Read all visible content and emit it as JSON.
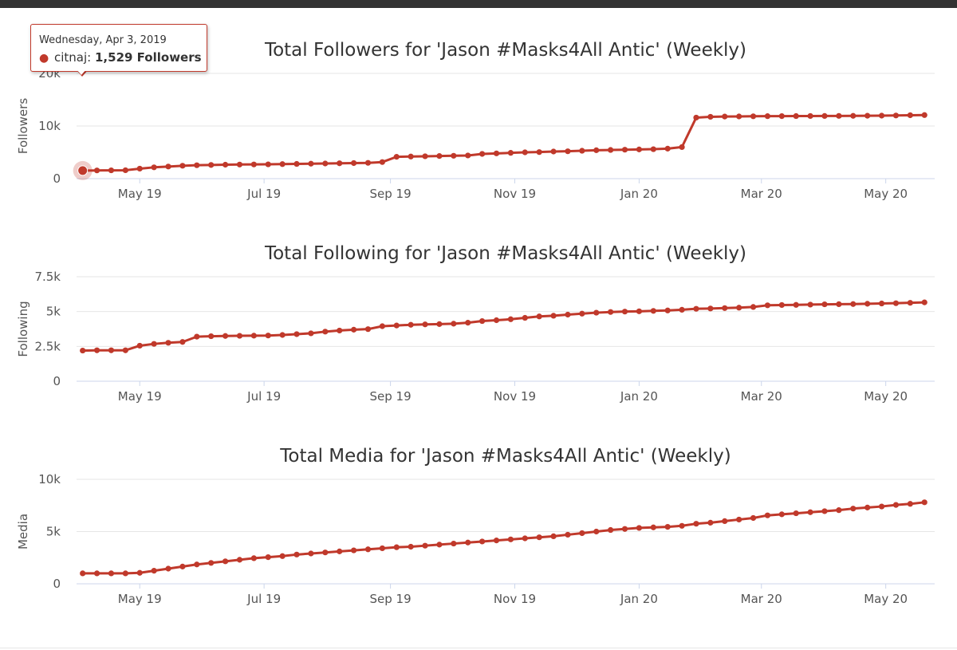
{
  "colors": {
    "series": "#c0392b",
    "grid": "#e6e6e6",
    "axis": "#ccd6eb",
    "text": "#333333"
  },
  "tooltip": {
    "date": "Wednesday, Apr 3, 2019",
    "series": "citnaj",
    "value": "1,529 Followers"
  },
  "chart_data": [
    {
      "type": "line",
      "title": "Total Followers for 'Jason #Masks4All Antic' (Weekly)",
      "xlabel": "",
      "ylabel": "Followers",
      "ylim": [
        0,
        20000
      ],
      "yticks": [
        0,
        10000,
        20000
      ],
      "ytick_labels": [
        "0",
        "10k",
        "20k"
      ],
      "xlim": [
        "2019-03-31",
        "2020-05-25"
      ],
      "xticks": [
        "2019-05-01",
        "2019-07-01",
        "2019-09-01",
        "2019-11-01",
        "2020-01-01",
        "2020-03-01",
        "2020-05-01"
      ],
      "xtick_labels": [
        "May 19",
        "Jul 19",
        "Sep 19",
        "Nov 19",
        "Jan 20",
        "Mar 20",
        "May 20"
      ],
      "grid": true,
      "highlight_index": 0,
      "series": [
        {
          "name": "citnaj",
          "x": [
            "2019-04-03",
            "2019-04-10",
            "2019-04-17",
            "2019-04-24",
            "2019-05-01",
            "2019-05-08",
            "2019-05-15",
            "2019-05-22",
            "2019-05-29",
            "2019-06-05",
            "2019-06-12",
            "2019-06-19",
            "2019-06-26",
            "2019-07-03",
            "2019-07-10",
            "2019-07-17",
            "2019-07-24",
            "2019-07-31",
            "2019-08-07",
            "2019-08-14",
            "2019-08-21",
            "2019-08-28",
            "2019-09-04",
            "2019-09-11",
            "2019-09-18",
            "2019-09-25",
            "2019-10-02",
            "2019-10-09",
            "2019-10-16",
            "2019-10-23",
            "2019-10-30",
            "2019-11-06",
            "2019-11-13",
            "2019-11-20",
            "2019-11-27",
            "2019-12-04",
            "2019-12-11",
            "2019-12-18",
            "2019-12-25",
            "2020-01-01",
            "2020-01-08",
            "2020-01-15",
            "2020-01-22",
            "2020-01-29",
            "2020-02-05",
            "2020-02-12",
            "2020-02-19",
            "2020-02-26",
            "2020-03-04",
            "2020-03-11",
            "2020-03-18",
            "2020-03-25",
            "2020-04-01",
            "2020-04-08",
            "2020-04-15",
            "2020-04-22",
            "2020-04-29",
            "2020-05-06",
            "2020-05-13",
            "2020-05-20"
          ],
          "values": [
            1529,
            1560,
            1580,
            1600,
            1900,
            2150,
            2300,
            2450,
            2550,
            2600,
            2650,
            2680,
            2700,
            2720,
            2760,
            2800,
            2840,
            2880,
            2920,
            2960,
            3000,
            3150,
            4150,
            4200,
            4250,
            4300,
            4350,
            4400,
            4700,
            4800,
            4900,
            5000,
            5050,
            5150,
            5200,
            5300,
            5400,
            5450,
            5500,
            5550,
            5600,
            5700,
            6000,
            11600,
            11750,
            11800,
            11820,
            11850,
            11870,
            11880,
            11890,
            11900,
            11910,
            11920,
            11930,
            11950,
            11970,
            12000,
            12050,
            12080
          ]
        }
      ]
    },
    {
      "type": "line",
      "title": "Total Following for 'Jason #Masks4All Antic' (Weekly)",
      "xlabel": "",
      "ylabel": "Following",
      "ylim": [
        0,
        7500
      ],
      "yticks": [
        0,
        2500,
        5000,
        7500
      ],
      "ytick_labels": [
        "0",
        "2.5k",
        "5k",
        "7.5k"
      ],
      "xlim": [
        "2019-03-31",
        "2020-05-25"
      ],
      "xticks": [
        "2019-05-01",
        "2019-07-01",
        "2019-09-01",
        "2019-11-01",
        "2020-01-01",
        "2020-03-01",
        "2020-05-01"
      ],
      "xtick_labels": [
        "May 19",
        "Jul 19",
        "Sep 19",
        "Nov 19",
        "Jan 20",
        "Mar 20",
        "May 20"
      ],
      "grid": true,
      "series": [
        {
          "name": "citnaj",
          "x": [
            "2019-04-03",
            "2019-04-10",
            "2019-04-17",
            "2019-04-24",
            "2019-05-01",
            "2019-05-08",
            "2019-05-15",
            "2019-05-22",
            "2019-05-29",
            "2019-06-05",
            "2019-06-12",
            "2019-06-19",
            "2019-06-26",
            "2019-07-03",
            "2019-07-10",
            "2019-07-17",
            "2019-07-24",
            "2019-07-31",
            "2019-08-07",
            "2019-08-14",
            "2019-08-21",
            "2019-08-28",
            "2019-09-04",
            "2019-09-11",
            "2019-09-18",
            "2019-09-25",
            "2019-10-02",
            "2019-10-09",
            "2019-10-16",
            "2019-10-23",
            "2019-10-30",
            "2019-11-06",
            "2019-11-13",
            "2019-11-20",
            "2019-11-27",
            "2019-12-04",
            "2019-12-11",
            "2019-12-18",
            "2019-12-25",
            "2020-01-01",
            "2020-01-08",
            "2020-01-15",
            "2020-01-22",
            "2020-01-29",
            "2020-02-05",
            "2020-02-12",
            "2020-02-19",
            "2020-02-26",
            "2020-03-04",
            "2020-03-11",
            "2020-03-18",
            "2020-03-25",
            "2020-04-01",
            "2020-04-08",
            "2020-04-15",
            "2020-04-22",
            "2020-04-29",
            "2020-05-06",
            "2020-05-13",
            "2020-05-20"
          ],
          "values": [
            2200,
            2220,
            2220,
            2220,
            2550,
            2680,
            2760,
            2820,
            3200,
            3230,
            3250,
            3260,
            3270,
            3280,
            3320,
            3380,
            3440,
            3560,
            3640,
            3700,
            3740,
            3950,
            4000,
            4050,
            4080,
            4100,
            4130,
            4200,
            4320,
            4380,
            4450,
            4550,
            4650,
            4700,
            4780,
            4850,
            4920,
            4970,
            5000,
            5020,
            5050,
            5080,
            5130,
            5200,
            5220,
            5250,
            5280,
            5330,
            5450,
            5470,
            5480,
            5500,
            5520,
            5530,
            5540,
            5560,
            5580,
            5600,
            5630,
            5660
          ]
        }
      ]
    },
    {
      "type": "line",
      "title": "Total Media for 'Jason #Masks4All Antic' (Weekly)",
      "xlabel": "",
      "ylabel": "Media",
      "ylim": [
        0,
        10000
      ],
      "yticks": [
        0,
        5000,
        10000
      ],
      "ytick_labels": [
        "0",
        "5k",
        "10k"
      ],
      "xlim": [
        "2019-03-31",
        "2020-05-25"
      ],
      "xticks": [
        "2019-05-01",
        "2019-07-01",
        "2019-09-01",
        "2019-11-01",
        "2020-01-01",
        "2020-03-01",
        "2020-05-01"
      ],
      "xtick_labels": [
        "May 19",
        "Jul 19",
        "Sep 19",
        "Nov 19",
        "Jan 20",
        "Mar 20",
        "May 20"
      ],
      "grid": true,
      "series": [
        {
          "name": "citnaj",
          "x": [
            "2019-04-03",
            "2019-04-10",
            "2019-04-17",
            "2019-04-24",
            "2019-05-01",
            "2019-05-08",
            "2019-05-15",
            "2019-05-22",
            "2019-05-29",
            "2019-06-05",
            "2019-06-12",
            "2019-06-19",
            "2019-06-26",
            "2019-07-03",
            "2019-07-10",
            "2019-07-17",
            "2019-07-24",
            "2019-07-31",
            "2019-08-07",
            "2019-08-14",
            "2019-08-21",
            "2019-08-28",
            "2019-09-04",
            "2019-09-11",
            "2019-09-18",
            "2019-09-25",
            "2019-10-02",
            "2019-10-09",
            "2019-10-16",
            "2019-10-23",
            "2019-10-30",
            "2019-11-06",
            "2019-11-13",
            "2019-11-20",
            "2019-11-27",
            "2019-12-04",
            "2019-12-11",
            "2019-12-18",
            "2019-12-25",
            "2020-01-01",
            "2020-01-08",
            "2020-01-15",
            "2020-01-22",
            "2020-01-29",
            "2020-02-05",
            "2020-02-12",
            "2020-02-19",
            "2020-02-26",
            "2020-03-04",
            "2020-03-11",
            "2020-03-18",
            "2020-03-25",
            "2020-04-01",
            "2020-04-08",
            "2020-04-15",
            "2020-04-22",
            "2020-04-29",
            "2020-05-06",
            "2020-05-13",
            "2020-05-20"
          ],
          "values": [
            1000,
            1000,
            1000,
            1000,
            1050,
            1250,
            1450,
            1650,
            1850,
            2000,
            2150,
            2300,
            2450,
            2550,
            2650,
            2800,
            2900,
            3000,
            3100,
            3200,
            3300,
            3400,
            3500,
            3550,
            3650,
            3750,
            3850,
            3950,
            4050,
            4150,
            4250,
            4350,
            4450,
            4550,
            4700,
            4850,
            5000,
            5150,
            5250,
            5350,
            5400,
            5450,
            5550,
            5750,
            5850,
            6000,
            6150,
            6300,
            6550,
            6650,
            6750,
            6850,
            6950,
            7050,
            7200,
            7300,
            7400,
            7550,
            7650,
            7800
          ]
        }
      ]
    }
  ]
}
